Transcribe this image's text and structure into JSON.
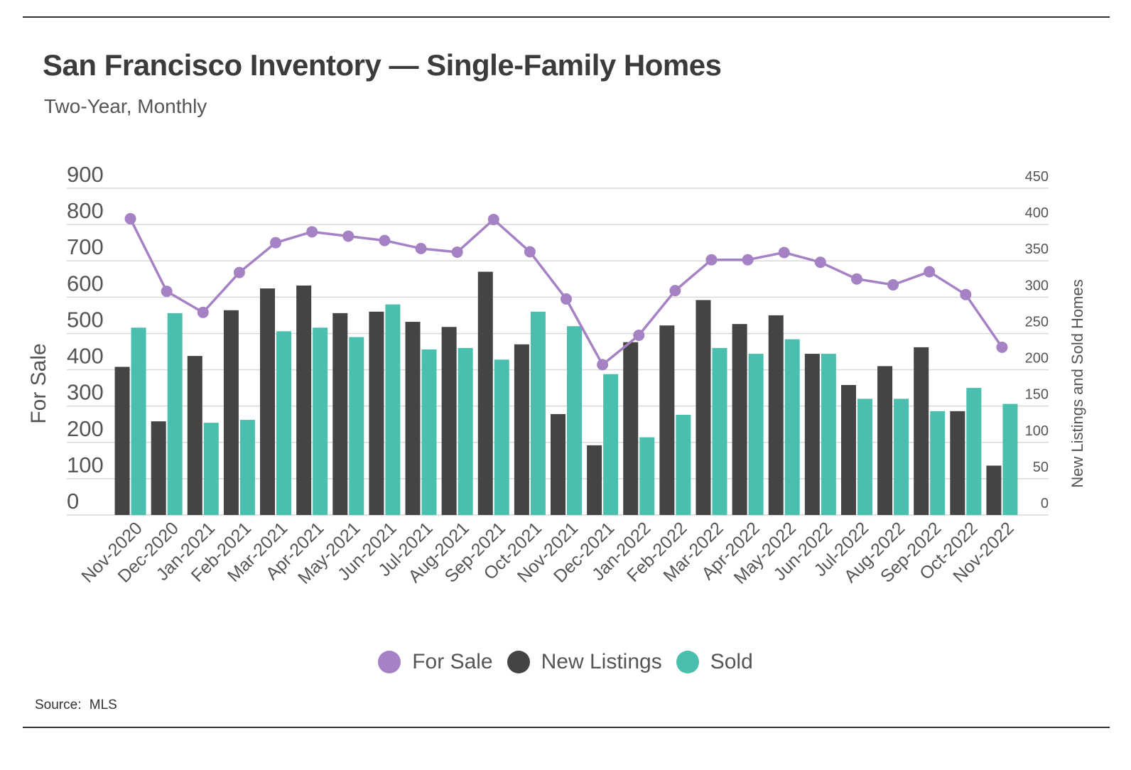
{
  "header": {
    "title": "San Francisco Inventory — Single-Family Homes",
    "subtitle": "Two-Year, Monthly"
  },
  "footer": {
    "source_label": "Source:",
    "source_value": "MLS"
  },
  "colors": {
    "for_sale": "#a582c4",
    "new_listings": "#444444",
    "sold": "#4abfad",
    "grid": "#d9d9d9",
    "axis_text": "#555555"
  },
  "legend": [
    {
      "label": "For Sale",
      "color": "#a582c4"
    },
    {
      "label": "New Listings",
      "color": "#444444"
    },
    {
      "label": "Sold",
      "color": "#4abfad"
    }
  ],
  "chart_data": {
    "type": "bar",
    "title": "San Francisco Inventory — Single-Family Homes",
    "subtitle": "Two-Year, Monthly",
    "categories": [
      "Nov-2020",
      "Dec-2020",
      "Jan-2021",
      "Feb-2021",
      "Mar-2021",
      "Apr-2021",
      "May-2021",
      "Jun-2021",
      "Jul-2021",
      "Aug-2021",
      "Sep-2021",
      "Oct-2021",
      "Nov-2021",
      "Dec-2021",
      "Jan-2022",
      "Feb-2022",
      "Mar-2022",
      "Apr-2022",
      "May-2022",
      "Jun-2022",
      "Jul-2022",
      "Aug-2022",
      "Sep-2022",
      "Oct-2022",
      "Nov-2022"
    ],
    "ylabel": "For Sale",
    "y2label": "New Listings and Sold Homes",
    "ylim": [
      0,
      900
    ],
    "y2lim": [
      0,
      450
    ],
    "yticks": [
      "0",
      "100",
      "200",
      "300",
      "400",
      "500",
      "600",
      "700",
      "800",
      "900"
    ],
    "y2ticks": [
      "0",
      "50",
      "100",
      "150",
      "200",
      "250",
      "300",
      "350",
      "400",
      "450"
    ],
    "grid": true,
    "legend_position": "bottom",
    "series": [
      {
        "name": "For Sale",
        "kind": "line",
        "axis": "left",
        "values": [
          816,
          616,
          558,
          668,
          750,
          780,
          768,
          756,
          734,
          724,
          814,
          725,
          595,
          414,
          495,
          618,
          703,
          703,
          723,
          696,
          650,
          634,
          670,
          607,
          462
        ]
      },
      {
        "name": "New Listings",
        "kind": "bar",
        "axis": "right",
        "values": [
          204,
          129,
          219,
          282,
          312,
          316,
          278,
          280,
          266,
          259,
          335,
          235,
          139,
          96,
          238,
          261,
          296,
          263,
          275,
          222,
          179,
          205,
          231,
          143,
          68
        ]
      },
      {
        "name": "Sold",
        "kind": "bar",
        "axis": "right",
        "values": [
          258,
          278,
          127,
          131,
          253,
          258,
          245,
          290,
          228,
          230,
          214,
          280,
          260,
          194,
          107,
          138,
          230,
          222,
          242,
          222,
          160,
          160,
          143,
          175,
          153
        ]
      }
    ]
  }
}
